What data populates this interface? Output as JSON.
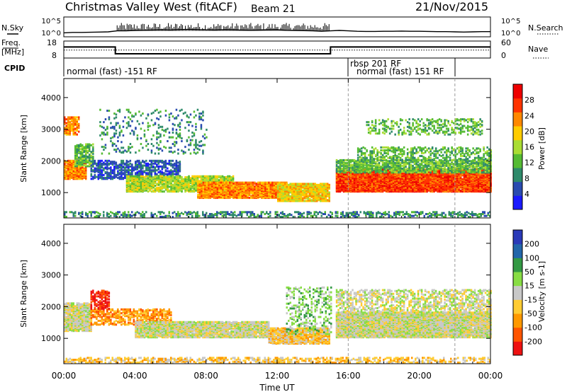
{
  "header": {
    "title": "Christmas Valley West (fitACF)",
    "beam": "Beam 21",
    "date": "21/Nov/2015"
  },
  "nsky_panel": {
    "left_label": "N.Sky",
    "right_label": "N.Search",
    "left_ticks": [
      "10^5",
      "10^0"
    ],
    "right_ticks": [
      "10^5",
      "10^0"
    ]
  },
  "freq_panel": {
    "left_label_line1": "Freq.",
    "left_label_line2": "[MHz]",
    "right_label": "Nave",
    "left_ticks": [
      "18",
      "8"
    ],
    "right_ticks": [
      "60",
      "0"
    ]
  },
  "cpid": {
    "label": "CPID",
    "entries": [
      {
        "text": "normal (fast) -151 RF",
        "start_hour": 0,
        "end_hour": 16
      },
      {
        "text": "rbsp 201 RF",
        "start_hour": 16,
        "end_hour": 16
      },
      {
        "text": "normal (fast) 151 RF",
        "start_hour": 16,
        "end_hour": 22
      }
    ]
  },
  "time_axis": {
    "label": "Time UT",
    "ticks": [
      "00:00",
      "04:00",
      "08:00",
      "12:00",
      "16:00",
      "20:00",
      "00:00"
    ],
    "tick_hours": [
      0,
      4,
      8,
      12,
      16,
      20,
      24
    ],
    "range_hours": [
      0,
      24
    ]
  },
  "colors": {
    "power": [
      "#1a1aff",
      "#2a4bb0",
      "#2e8a6a",
      "#55bb33",
      "#aadd33",
      "#ffcc00",
      "#ff8800",
      "#ff3300",
      "#ee0000"
    ],
    "velocity": [
      "#ee1111",
      "#ff5500",
      "#ff9900",
      "#ffcc33",
      "#c8c8c8",
      "#88dd44",
      "#339944",
      "#2266aa",
      "#2a3ab8"
    ],
    "grey": "#c4c4bc"
  },
  "chart_data": [
    {
      "type": "line",
      "name": "nsky-nsearch",
      "x": [
        0,
        0.5,
        1,
        1.5,
        2,
        2.5,
        3,
        3.5,
        4,
        4.5,
        5,
        5.5,
        6,
        6.5,
        7,
        7.5,
        8,
        8.5,
        9,
        9.5,
        10,
        10.5,
        11,
        11.5,
        12,
        12.5,
        13,
        13.5,
        14,
        14.5,
        15,
        15.5,
        16,
        16.5,
        17,
        17.5,
        18,
        18.5,
        19,
        19.5,
        20,
        20.5,
        21,
        21.5,
        22,
        22.5,
        23,
        23.5,
        24
      ],
      "series": [
        {
          "name": "N.Sky",
          "values": [
            0.2,
            0.22,
            0.22,
            0.23,
            0.24,
            0.25,
            0.3,
            0.3,
            0.32,
            0.33,
            0.34,
            0.35,
            0.34,
            0.36,
            0.38,
            0.36,
            0.35,
            0.34,
            0.36,
            0.35,
            0.34,
            0.33,
            0.34,
            0.35,
            0.36,
            0.33,
            0.32,
            0.31,
            0.3,
            0.28,
            0.3,
            0.32,
            0.3,
            0.28,
            0.27,
            0.27,
            0.28,
            0.28,
            0.29,
            0.28,
            0.28,
            0.27,
            0.26,
            0.26,
            0.25,
            0.24,
            0.25,
            0.26,
            0.26
          ]
        }
      ],
      "ylim": [
        0,
        1
      ]
    },
    {
      "type": "line",
      "name": "frequency-nave",
      "x": [
        0,
        2.9,
        2.9,
        15,
        15,
        24
      ],
      "series": [
        {
          "name": "Freq",
          "values": [
            14.5,
            14.5,
            10.5,
            10.5,
            14.5,
            14.5
          ]
        },
        {
          "name": "Nave",
          "values": [
            28,
            28,
            28,
            28,
            28,
            28
          ]
        }
      ],
      "ylim": [
        8,
        18
      ]
    },
    {
      "type": "heatmap",
      "name": "power",
      "ylabel": "Slant Range [km]",
      "yticks": [
        1000,
        2000,
        3000,
        4000
      ],
      "ylim": [
        200,
        4600
      ],
      "colorbar": {
        "label": "Power [dB]",
        "ticks": [
          "28",
          "24",
          "20",
          "16",
          "12",
          "8",
          "4"
        ],
        "range": [
          0,
          32
        ]
      },
      "regions": [
        {
          "t0": 0.0,
          "t1": 1.2,
          "r0": 1400,
          "r1": 2000,
          "level": 6,
          "density": 0.85
        },
        {
          "t0": 0.0,
          "t1": 0.8,
          "r0": 2800,
          "r1": 3400,
          "level": 6,
          "density": 0.6
        },
        {
          "t0": 0.6,
          "t1": 1.6,
          "r0": 1800,
          "r1": 2500,
          "level": 3,
          "density": 0.6
        },
        {
          "t0": 1.5,
          "t1": 6.5,
          "r0": 1400,
          "r1": 2000,
          "level": 1,
          "density": 0.55
        },
        {
          "t0": 3.5,
          "t1": 9.5,
          "r0": 1000,
          "r1": 1500,
          "level": 4,
          "density": 0.8
        },
        {
          "t0": 7.5,
          "t1": 12.5,
          "r0": 800,
          "r1": 1300,
          "level": 6,
          "density": 0.9
        },
        {
          "t0": 12.0,
          "t1": 14.9,
          "r0": 700,
          "r1": 1250,
          "level": 5,
          "density": 0.85
        },
        {
          "t0": 15.3,
          "t1": 24.0,
          "r0": 1000,
          "r1": 1700,
          "level": 7,
          "density": 0.95
        },
        {
          "t0": 15.3,
          "t1": 24.0,
          "r0": 1600,
          "r1": 2000,
          "level": 3,
          "density": 0.7
        },
        {
          "t0": 16.5,
          "t1": 24.0,
          "r0": 2000,
          "r1": 2400,
          "level": 3,
          "density": 0.35
        },
        {
          "t0": 17.0,
          "t1": 23.5,
          "r0": 2800,
          "r1": 3300,
          "level": 3,
          "density": 0.25
        },
        {
          "t0": 2.0,
          "t1": 8.0,
          "r0": 2200,
          "r1": 3600,
          "level": 2,
          "density": 0.12
        },
        {
          "t0": 0.0,
          "t1": 24.0,
          "r0": 200,
          "r1": 380,
          "level": 2,
          "density": 0.35
        }
      ]
    },
    {
      "type": "heatmap",
      "name": "velocity",
      "ylabel": "Slant Range [km]",
      "yticks": [
        1000,
        2000,
        3000,
        4000
      ],
      "ylim": [
        200,
        4600
      ],
      "colorbar": {
        "label": "Velocity [m s-1]",
        "ticks": [
          "200",
          "100",
          "50",
          "15",
          "-15",
          "-50",
          "-100",
          "-200"
        ],
        "range": [
          -250,
          250
        ]
      },
      "regions": [
        {
          "t0": 0.0,
          "t1": 1.5,
          "r0": 1200,
          "r1": 2100,
          "level": 4,
          "density": 0.85
        },
        {
          "t0": 1.5,
          "t1": 6.0,
          "r0": 1400,
          "r1": 1900,
          "level": 2,
          "density": 0.55
        },
        {
          "t0": 1.5,
          "t1": 2.5,
          "r0": 1900,
          "r1": 2500,
          "level": 0,
          "density": 0.5
        },
        {
          "t0": 4.0,
          "t1": 11.5,
          "r0": 1000,
          "r1": 1500,
          "level": 4,
          "density": 0.85
        },
        {
          "t0": 11.5,
          "t1": 14.9,
          "r0": 800,
          "r1": 1300,
          "level": 3,
          "density": 0.85
        },
        {
          "t0": 15.3,
          "t1": 24.0,
          "r0": 1000,
          "r1": 1800,
          "level": 4,
          "density": 0.95
        },
        {
          "t0": 15.3,
          "t1": 24.0,
          "r0": 1800,
          "r1": 2500,
          "level": 4,
          "density": 0.4
        },
        {
          "t0": 12.5,
          "t1": 15.0,
          "r0": 1100,
          "r1": 2600,
          "level": 5,
          "density": 0.25
        },
        {
          "t0": 0.0,
          "t1": 24.0,
          "r0": 200,
          "r1": 380,
          "level": 3,
          "density": 0.4
        }
      ]
    }
  ]
}
